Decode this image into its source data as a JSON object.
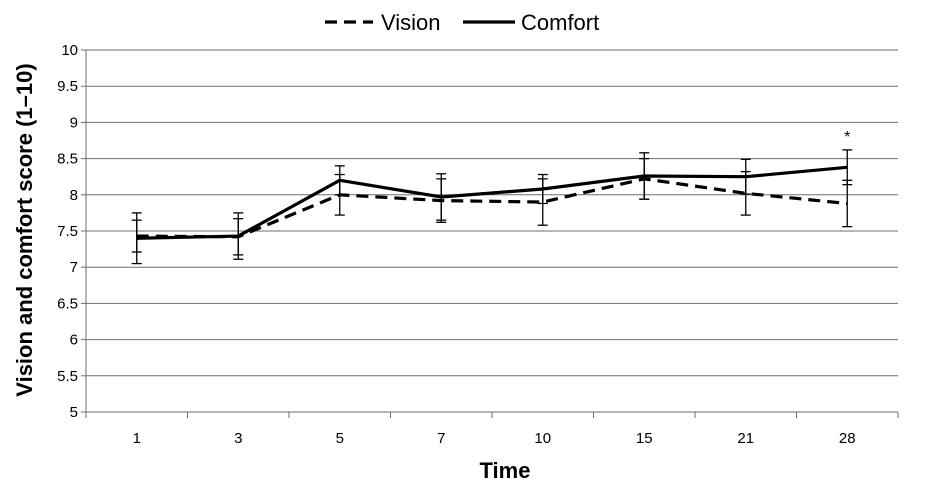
{
  "chart_data": {
    "type": "line",
    "xlabel": "Time",
    "ylabel": "Vision and comfort score (1–10)",
    "categories": [
      "1",
      "3",
      "5",
      "7",
      "10",
      "15",
      "21",
      "28"
    ],
    "ylim": [
      5,
      10
    ],
    "yticks": [
      "5",
      "5.5",
      "6",
      "6.5",
      "7",
      "7.5",
      "8",
      "8.5",
      "9",
      "9.5",
      "10"
    ],
    "grid": true,
    "legend_position": "top",
    "series": [
      {
        "name": "Vision",
        "style": "dashed",
        "values": [
          7.43,
          7.42,
          8.0,
          7.92,
          7.9,
          8.22,
          8.02,
          7.88
        ],
        "error": [
          0.22,
          0.25,
          0.28,
          0.3,
          0.32,
          0.28,
          0.3,
          0.32
        ]
      },
      {
        "name": "Comfort",
        "style": "solid",
        "values": [
          7.4,
          7.43,
          8.2,
          7.97,
          8.08,
          8.26,
          8.25,
          8.38
        ],
        "error": [
          0.35,
          0.32,
          0.2,
          0.32,
          0.2,
          0.32,
          0.24,
          0.24
        ]
      }
    ],
    "annotations": [
      {
        "category": "28",
        "text": "*"
      }
    ],
    "colors": {
      "line": "#000000",
      "grid": "#6e6e6e"
    }
  }
}
